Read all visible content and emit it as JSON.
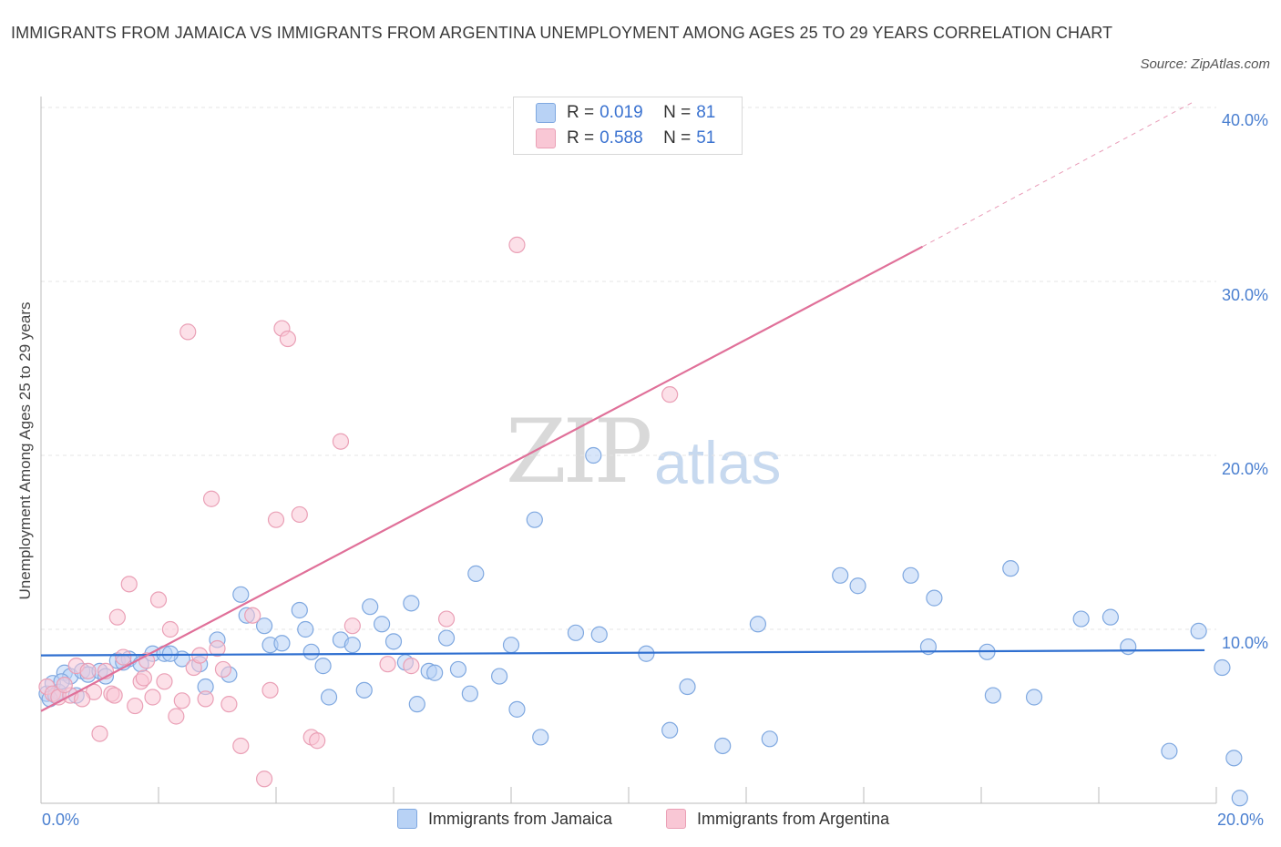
{
  "title": "IMMIGRANTS FROM JAMAICA VS IMMIGRANTS FROM ARGENTINA UNEMPLOYMENT AMONG AGES 25 TO 29 YEARS CORRELATION CHART",
  "source": "Source: ZipAtlas.com",
  "watermark": {
    "zip": "ZIP",
    "atlas": "atlas"
  },
  "colors": {
    "blue": "#7fa8e0",
    "blue_fill": "#b8d2f5",
    "blue_line": "#2f6fd0",
    "pink": "#eaa0b6",
    "pink_fill": "#f9c7d5",
    "pink_line": "#e07099"
  },
  "legend": {
    "rows": [
      {
        "r_label": "R =",
        "r_value": "0.019",
        "n_label": "N =",
        "n_value": "81"
      },
      {
        "r_label": "R =",
        "r_value": "0.588",
        "n_label": "N =",
        "n_value": "51"
      }
    ]
  },
  "chart_data": {
    "type": "scatter",
    "title": "IMMIGRANTS FROM JAMAICA VS IMMIGRANTS FROM ARGENTINA UNEMPLOYMENT AMONG AGES 25 TO 29 YEARS CORRELATION CHART",
    "xlabel": "",
    "ylabel": "Unemployment Among Ages 25 to 29 years",
    "xlim": [
      0,
      20
    ],
    "ylim": [
      0,
      40
    ],
    "x_tick_labels": [
      "0.0%",
      "20.0%"
    ],
    "y_tick_labels": [
      "10.0%",
      "20.0%",
      "30.0%",
      "40.0%"
    ],
    "y_ticks": [
      10,
      20,
      30,
      40
    ],
    "grid": true,
    "series": [
      {
        "name": "Immigrants from Jamaica",
        "color": "#7fa8e0",
        "trend": {
          "x": [
            0,
            19.8
          ],
          "y": [
            8.5,
            8.8
          ]
        },
        "points": [
          [
            0.1,
            6.3
          ],
          [
            0.2,
            6.9
          ],
          [
            0.3,
            6.4
          ],
          [
            0.4,
            7.5
          ],
          [
            0.5,
            7.3
          ],
          [
            0.7,
            7.6
          ],
          [
            0.8,
            7.4
          ],
          [
            1.0,
            7.6
          ],
          [
            1.3,
            8.2
          ],
          [
            1.5,
            8.3
          ],
          [
            1.7,
            8.0
          ],
          [
            1.9,
            8.6
          ],
          [
            2.1,
            8.6
          ],
          [
            2.4,
            8.3
          ],
          [
            2.7,
            8.0
          ],
          [
            2.8,
            6.7
          ],
          [
            3.2,
            7.4
          ],
          [
            3.4,
            12.0
          ],
          [
            3.5,
            10.8
          ],
          [
            3.8,
            10.2
          ],
          [
            3.9,
            9.1
          ],
          [
            4.1,
            9.2
          ],
          [
            4.4,
            11.1
          ],
          [
            4.5,
            10.0
          ],
          [
            4.6,
            8.7
          ],
          [
            4.8,
            7.9
          ],
          [
            4.9,
            6.1
          ],
          [
            5.1,
            9.4
          ],
          [
            5.3,
            9.1
          ],
          [
            5.5,
            6.5
          ],
          [
            5.6,
            11.3
          ],
          [
            5.8,
            10.3
          ],
          [
            6.0,
            9.3
          ],
          [
            6.2,
            8.1
          ],
          [
            6.3,
            11.5
          ],
          [
            6.4,
            5.7
          ],
          [
            6.6,
            7.6
          ],
          [
            6.9,
            9.5
          ],
          [
            7.1,
            7.7
          ],
          [
            7.3,
            6.3
          ],
          [
            7.4,
            13.2
          ],
          [
            7.8,
            7.3
          ],
          [
            8.0,
            9.1
          ],
          [
            8.1,
            5.4
          ],
          [
            8.4,
            16.3
          ],
          [
            8.5,
            3.8
          ],
          [
            9.1,
            9.8
          ],
          [
            9.4,
            20.0
          ],
          [
            9.5,
            9.7
          ],
          [
            10.3,
            8.6
          ],
          [
            10.7,
            4.2
          ],
          [
            11.0,
            6.7
          ],
          [
            11.6,
            3.3
          ],
          [
            12.2,
            10.3
          ],
          [
            12.4,
            3.7
          ],
          [
            13.6,
            13.1
          ],
          [
            13.9,
            12.5
          ],
          [
            14.8,
            13.1
          ],
          [
            15.1,
            9.0
          ],
          [
            15.2,
            11.8
          ],
          [
            16.1,
            8.7
          ],
          [
            16.2,
            6.2
          ],
          [
            16.5,
            13.5
          ],
          [
            16.9,
            6.1
          ],
          [
            17.7,
            10.6
          ],
          [
            18.2,
            10.7
          ],
          [
            18.5,
            9.0
          ],
          [
            19.2,
            3.0
          ],
          [
            19.7,
            9.9
          ],
          [
            20.1,
            7.8
          ],
          [
            20.3,
            2.6
          ],
          [
            20.4,
            0.3
          ],
          [
            0.6,
            6.2
          ],
          [
            1.1,
            7.3
          ],
          [
            1.4,
            8.1
          ],
          [
            2.2,
            8.6
          ],
          [
            3.0,
            9.4
          ],
          [
            6.7,
            7.5
          ],
          [
            0.15,
            6.0
          ],
          [
            0.25,
            6.2
          ],
          [
            0.35,
            7.0
          ]
        ]
      },
      {
        "name": "Immigrants from Argentina",
        "color": "#eaa0b6",
        "trend": {
          "x": [
            0,
            15
          ],
          "y": [
            5.3,
            32.0
          ]
        },
        "trend_dashed": {
          "x": [
            15,
            19.6
          ],
          "y": [
            32.0,
            40.3
          ]
        },
        "points": [
          [
            0.1,
            6.7
          ],
          [
            0.2,
            6.3
          ],
          [
            0.3,
            6.1
          ],
          [
            0.5,
            6.2
          ],
          [
            0.6,
            7.9
          ],
          [
            0.8,
            7.6
          ],
          [
            0.9,
            6.4
          ],
          [
            1.0,
            4.0
          ],
          [
            1.1,
            7.6
          ],
          [
            1.2,
            6.3
          ],
          [
            1.3,
            10.7
          ],
          [
            1.4,
            8.4
          ],
          [
            1.5,
            12.6
          ],
          [
            1.6,
            5.6
          ],
          [
            1.7,
            7.0
          ],
          [
            1.8,
            8.2
          ],
          [
            1.9,
            6.1
          ],
          [
            2.0,
            11.7
          ],
          [
            2.1,
            7.0
          ],
          [
            2.2,
            10.0
          ],
          [
            2.3,
            5.0
          ],
          [
            2.4,
            5.9
          ],
          [
            2.5,
            27.1
          ],
          [
            2.6,
            7.8
          ],
          [
            2.7,
            8.5
          ],
          [
            2.8,
            6.0
          ],
          [
            2.9,
            17.5
          ],
          [
            3.0,
            8.9
          ],
          [
            3.1,
            7.7
          ],
          [
            3.2,
            5.7
          ],
          [
            3.4,
            3.3
          ],
          [
            3.6,
            10.8
          ],
          [
            3.8,
            1.4
          ],
          [
            3.9,
            6.5
          ],
          [
            4.0,
            16.3
          ],
          [
            4.1,
            27.3
          ],
          [
            4.2,
            26.7
          ],
          [
            4.4,
            16.6
          ],
          [
            4.6,
            3.8
          ],
          [
            4.7,
            3.6
          ],
          [
            5.1,
            20.8
          ],
          [
            5.3,
            10.2
          ],
          [
            5.9,
            8.0
          ],
          [
            6.3,
            7.9
          ],
          [
            6.9,
            10.6
          ],
          [
            8.1,
            32.1
          ],
          [
            10.7,
            23.5
          ],
          [
            0.4,
            6.8
          ],
          [
            0.7,
            6.0
          ],
          [
            1.25,
            6.2
          ],
          [
            1.75,
            7.2
          ]
        ]
      }
    ]
  }
}
